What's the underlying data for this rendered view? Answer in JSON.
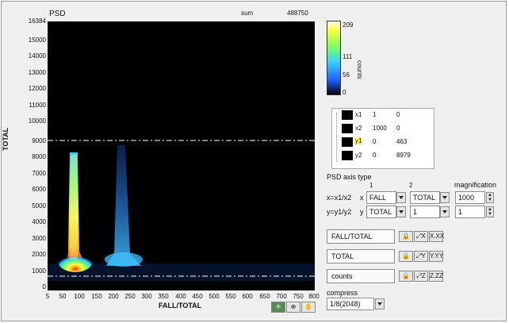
{
  "graph": {
    "title": "PSD",
    "sum_label": "sum",
    "sum_value": "488750",
    "x_label": "FALL/TOTAL",
    "y_label": "TOTAL",
    "y_ticks": [
      "16384",
      "15000",
      "14000",
      "13000",
      "12000",
      "11000",
      "10000",
      "9000",
      "8000",
      "7000",
      "6000",
      "5000",
      "4000",
      "3000",
      "2000",
      "1000",
      "0"
    ],
    "x_ticks": [
      "5",
      "50",
      "100",
      "150",
      "200",
      "250",
      "300",
      "350",
      "400",
      "450",
      "500",
      "550",
      "600",
      "650",
      "700",
      "750",
      "800"
    ]
  },
  "colorbar": {
    "label": "counts",
    "ticks": [
      "209",
      "111",
      "56",
      "0"
    ],
    "scale_colors": [
      "#ffffff",
      "#ffff40",
      "#7cff60",
      "#40d0ff",
      "#2060ff",
      "#000000"
    ]
  },
  "cursors": {
    "rows": [
      {
        "name": "x1",
        "v1": "1",
        "v2": "0"
      },
      {
        "name": "x2",
        "v1": "1000",
        "v2": "0"
      },
      {
        "name": "y1",
        "v1": "0",
        "v2": "463"
      },
      {
        "name": "y2",
        "v1": "0",
        "v2": "8979"
      }
    ]
  },
  "axis_type": {
    "title": "PSD axis type",
    "col1": "1",
    "col2": "2",
    "col3": "magnification",
    "row_x_label": "x=x1/x2",
    "row_x_axis": "x",
    "row_x_v1": "FALL",
    "row_x_v2": "TOTAL",
    "row_x_mag": "1000",
    "row_y_label": "y=y1/y2",
    "row_y_axis": "y",
    "row_y_v1": "TOTAL",
    "row_y_v2": "1",
    "row_y_mag": "1"
  },
  "scales": {
    "x_name": "FALL/TOTAL",
    "y_name": "TOTAL",
    "z_name": "counts",
    "x_fmt": "X.XX",
    "y_fmt": "Y.YY",
    "z_fmt": "Z.ZZ"
  },
  "compress": {
    "label": "compress",
    "value": "1/8(2048)"
  }
}
